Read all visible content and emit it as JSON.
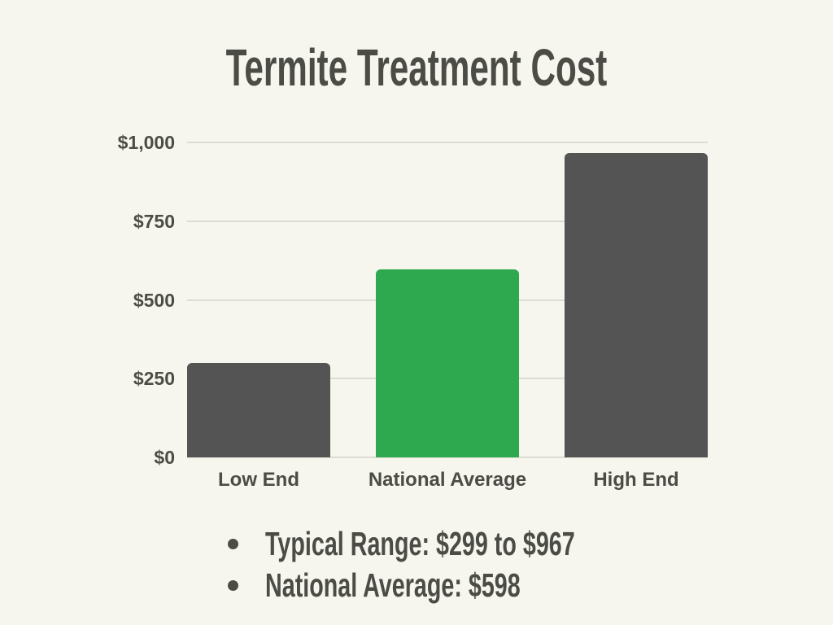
{
  "title": "Termite Treatment Cost",
  "colors": {
    "background": "#F6F6EE",
    "bar_gray": "#545454",
    "bar_green": "#2EA94F",
    "text_dark": "#4C4C47",
    "gridline": "#DCDCD3"
  },
  "chart_data": {
    "type": "bar",
    "title": "Termite Treatment Cost",
    "categories": [
      "Low End",
      "National Average",
      "High End"
    ],
    "values": [
      299,
      598,
      967
    ],
    "bar_colors": [
      "#545454",
      "#2EA94F",
      "#545454"
    ],
    "highlight_category": "National Average",
    "xlabel": "",
    "ylabel": "",
    "ylim": [
      0,
      1000
    ],
    "yticks": [
      0,
      250,
      500,
      750,
      1000
    ],
    "ytick_labels": [
      "$0",
      "$250",
      "$500",
      "$750",
      "$1,000"
    ],
    "grid": true,
    "legend": false
  },
  "notes": [
    "Typical Range: $299 to $967",
    "National Average: $598"
  ]
}
